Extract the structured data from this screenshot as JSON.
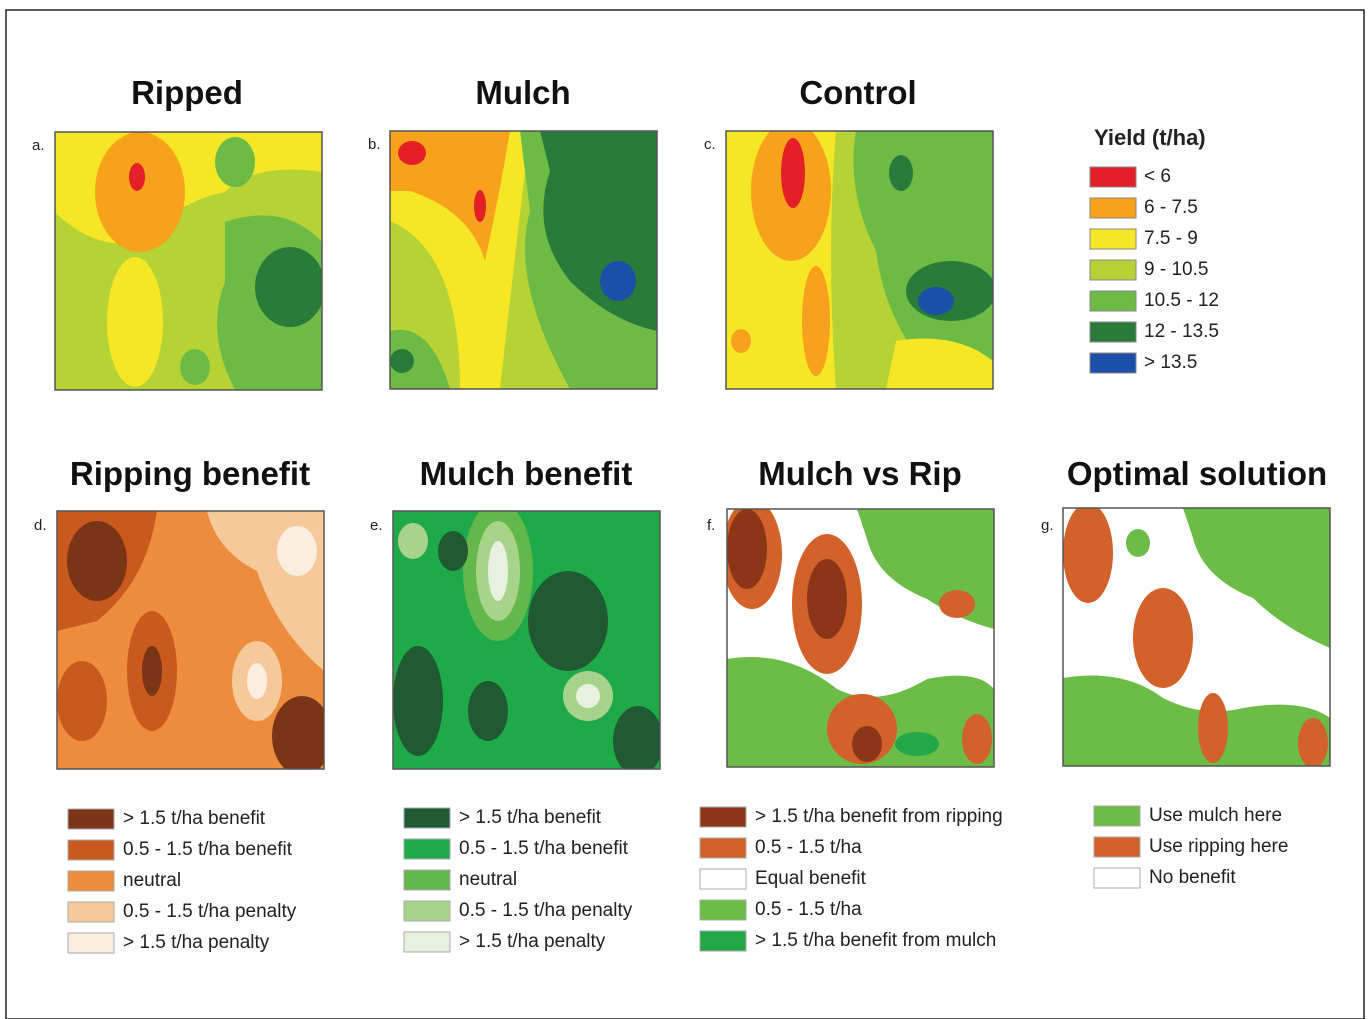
{
  "top_row": [
    {
      "letter": "a.",
      "title": "Ripped"
    },
    {
      "letter": "b.",
      "title": "Mulch"
    },
    {
      "letter": "c.",
      "title": "Control"
    }
  ],
  "yield_legend": {
    "title": "Yield (t/ha)",
    "items": [
      {
        "label": "< 6",
        "color": "#e41f26"
      },
      {
        "label": "6 - 7.5",
        "color": "#f7a21b"
      },
      {
        "label": "7.5 - 9",
        "color": "#f5e626"
      },
      {
        "label": "9 - 10.5",
        "color": "#b5d334"
      },
      {
        "label": "10.5 - 12",
        "color": "#6dbb45"
      },
      {
        "label": "12 - 13.5",
        "color": "#2a7a3a"
      },
      {
        "label": "> 13.5",
        "color": "#1c4fa8"
      }
    ]
  },
  "bottom_row": [
    {
      "letter": "d.",
      "title": "Ripping benefit",
      "legend": [
        {
          "label": "> 1.5 t/ha benefit",
          "color": "#7a3416"
        },
        {
          "label": "0.5 - 1.5 t/ha benefit",
          "color": "#c85a1e"
        },
        {
          "label": "neutral",
          "color": "#ec8c3c"
        },
        {
          "label": "0.5 - 1.5 t/ha penalty",
          "color": "#f6c99a"
        },
        {
          "label": "> 1.5 t/ha penalty",
          "color": "#fbeee0"
        }
      ]
    },
    {
      "letter": "e.",
      "title": "Mulch benefit",
      "legend": [
        {
          "label": "> 1.5 t/ha benefit",
          "color": "#1f5a32"
        },
        {
          "label": "0.5 - 1.5 t/ha benefit",
          "color": "#1faa4a"
        },
        {
          "label": "neutral",
          "color": "#62b84a"
        },
        {
          "label": "0.5 - 1.5 t/ha penalty",
          "color": "#a8d48a"
        },
        {
          "label": "> 1.5 t/ha penalty",
          "color": "#e6f1df"
        }
      ]
    },
    {
      "letter": "f.",
      "title": "Mulch vs Rip",
      "legend": [
        {
          "label": "> 1.5 t/ha benefit from ripping",
          "color": "#8b3617"
        },
        {
          "label": "0.5 - 1.5 t/ha",
          "color": "#d2612a"
        },
        {
          "label": "Equal benefit",
          "color": "#ffffff"
        },
        {
          "label": "0.5 - 1.5 t/ha",
          "color": "#6cbd47"
        },
        {
          "label": "> 1.5 t/ha benefit from mulch",
          "color": "#22a846"
        }
      ]
    },
    {
      "letter": "g.",
      "title": "Optimal solution",
      "legend": [
        {
          "label": "Use mulch here",
          "color": "#6cbd47"
        },
        {
          "label": "Use ripping here",
          "color": "#d2612a"
        },
        {
          "label": "No benefit",
          "color": "#ffffff"
        }
      ]
    }
  ]
}
